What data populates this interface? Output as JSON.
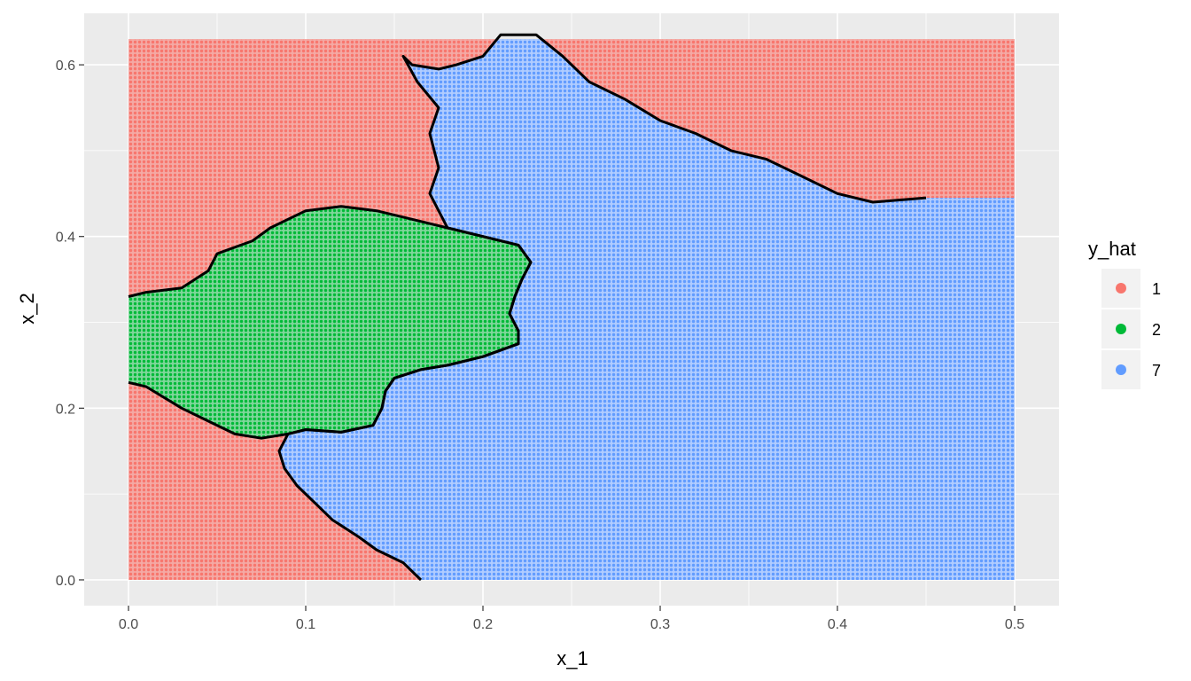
{
  "chart_data": {
    "type": "scatter",
    "description": "decision-region grid plot with class boundary contour",
    "xlabel": "x_1",
    "ylabel": "x_2",
    "xlim": [
      -0.025,
      0.525
    ],
    "ylim": [
      -0.03,
      0.66
    ],
    "x_ticks": [
      "0.0",
      "0.1",
      "0.2",
      "0.3",
      "0.4",
      "0.5"
    ],
    "y_ticks": [
      "0.0",
      "0.2",
      "0.4",
      "0.6"
    ],
    "grid_x_range": [
      0.0,
      0.5
    ],
    "grid_y_range": [
      0.0,
      0.6
    ],
    "grid": true,
    "legend": {
      "title": "y_hat",
      "position": "right",
      "entries": [
        {
          "label": "1",
          "color": "#F8766D"
        },
        {
          "label": "2",
          "color": "#00BA38"
        },
        {
          "label": "7",
          "color": "#619CFF"
        }
      ]
    },
    "regions": {
      "background_class": "1",
      "class_2_boundary": [
        [
          0.0,
          0.33
        ],
        [
          0.01,
          0.335
        ],
        [
          0.03,
          0.34
        ],
        [
          0.045,
          0.36
        ],
        [
          0.05,
          0.38
        ],
        [
          0.07,
          0.395
        ],
        [
          0.08,
          0.41
        ],
        [
          0.1,
          0.43
        ],
        [
          0.12,
          0.435
        ],
        [
          0.14,
          0.43
        ],
        [
          0.16,
          0.42
        ],
        [
          0.18,
          0.41
        ],
        [
          0.2,
          0.4
        ],
        [
          0.22,
          0.39
        ],
        [
          0.227,
          0.37
        ],
        [
          0.222,
          0.35
        ],
        [
          0.218,
          0.33
        ],
        [
          0.215,
          0.31
        ],
        [
          0.22,
          0.29
        ],
        [
          0.22,
          0.275
        ],
        [
          0.2,
          0.26
        ],
        [
          0.18,
          0.25
        ],
        [
          0.165,
          0.245
        ],
        [
          0.15,
          0.235
        ],
        [
          0.145,
          0.22
        ],
        [
          0.143,
          0.2
        ],
        [
          0.138,
          0.18
        ],
        [
          0.12,
          0.172
        ],
        [
          0.1,
          0.175
        ],
        [
          0.09,
          0.17
        ],
        [
          0.075,
          0.165
        ],
        [
          0.06,
          0.17
        ],
        [
          0.045,
          0.185
        ],
        [
          0.03,
          0.2
        ],
        [
          0.01,
          0.225
        ],
        [
          0.0,
          0.23
        ]
      ],
      "class_7_boundary": [
        [
          0.165,
          0.0
        ],
        [
          0.155,
          0.02
        ],
        [
          0.14,
          0.035
        ],
        [
          0.13,
          0.05
        ],
        [
          0.115,
          0.07
        ],
        [
          0.105,
          0.09
        ],
        [
          0.095,
          0.11
        ],
        [
          0.088,
          0.13
        ],
        [
          0.085,
          0.15
        ],
        [
          0.09,
          0.17
        ],
        [
          0.1,
          0.175
        ],
        [
          0.12,
          0.172
        ],
        [
          0.138,
          0.18
        ],
        [
          0.143,
          0.2
        ],
        [
          0.145,
          0.22
        ],
        [
          0.15,
          0.235
        ],
        [
          0.165,
          0.245
        ],
        [
          0.18,
          0.25
        ],
        [
          0.2,
          0.26
        ],
        [
          0.22,
          0.275
        ],
        [
          0.22,
          0.29
        ],
        [
          0.215,
          0.31
        ],
        [
          0.218,
          0.33
        ],
        [
          0.222,
          0.35
        ],
        [
          0.227,
          0.37
        ],
        [
          0.22,
          0.39
        ],
        [
          0.2,
          0.4
        ],
        [
          0.18,
          0.41
        ],
        [
          0.175,
          0.43
        ],
        [
          0.17,
          0.45
        ],
        [
          0.175,
          0.48
        ],
        [
          0.17,
          0.52
        ],
        [
          0.175,
          0.55
        ],
        [
          0.163,
          0.58
        ],
        [
          0.155,
          0.61
        ],
        [
          0.16,
          0.6
        ],
        [
          0.175,
          0.595
        ],
        [
          0.185,
          0.6
        ],
        [
          0.2,
          0.61
        ],
        [
          0.21,
          0.635
        ],
        [
          0.23,
          0.635
        ],
        [
          0.245,
          0.61
        ],
        [
          0.26,
          0.58
        ],
        [
          0.28,
          0.56
        ],
        [
          0.3,
          0.535
        ],
        [
          0.32,
          0.52
        ],
        [
          0.34,
          0.5
        ],
        [
          0.36,
          0.49
        ],
        [
          0.38,
          0.47
        ],
        [
          0.4,
          0.45
        ],
        [
          0.42,
          0.44
        ],
        [
          0.45,
          0.445
        ],
        [
          0.5,
          0.445
        ],
        [
          0.5,
          0.0
        ]
      ]
    }
  }
}
